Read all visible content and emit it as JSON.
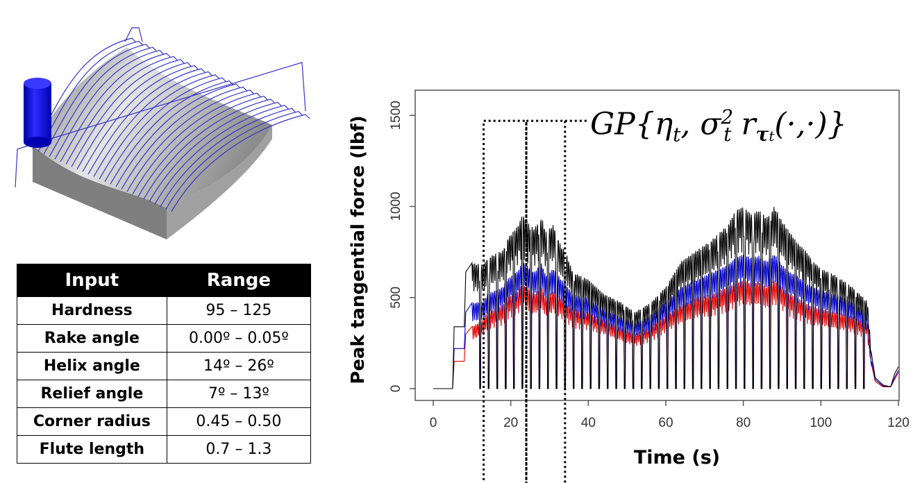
{
  "table": {
    "headers": [
      "Input",
      "Range"
    ],
    "rows": [
      {
        "input": "Hardness",
        "range": "95 – 125"
      },
      {
        "input": "Rake angle",
        "range": "0.00º – 0.05º"
      },
      {
        "input": "Helix angle",
        "range": "14º – 26º"
      },
      {
        "input": "Relief angle",
        "range": "7º – 13º"
      },
      {
        "input": "Corner radius",
        "range": "0.45 – 0.50"
      },
      {
        "input": "Flute length",
        "range": "0.7 – 1.3"
      }
    ]
  },
  "annotation": {
    "gp_prefix": "GP{η",
    "t1": "t",
    "sep": ", σ",
    "sq": "2",
    "t2": "t",
    "r": " r",
    "tau": "τ",
    "t3": "t",
    "suffix": "(·,·)}"
  },
  "chart_data": {
    "type": "line",
    "xlabel": "Time (s)",
    "ylabel": "Peak tangential force (lbf)",
    "xlim": [
      0,
      120
    ],
    "ylim": [
      0,
      1600
    ],
    "xticks": [
      0,
      20,
      40,
      60,
      80,
      100,
      120
    ],
    "yticks": [
      0,
      500,
      1000,
      1500
    ],
    "windows": [
      [
        13,
        24
      ],
      [
        24,
        34
      ]
    ],
    "window_level": 1470,
    "series": [
      {
        "name": "black",
        "color": "#000000",
        "x": [
          0,
          5,
          5.4,
          8,
          8.4,
          10,
          13,
          14,
          18,
          19,
          22,
          23,
          24,
          26,
          28,
          29,
          31,
          33,
          34,
          36,
          40,
          44,
          48,
          52,
          56,
          60,
          64,
          68,
          72,
          76,
          78,
          80,
          82,
          84,
          86,
          88,
          90,
          92,
          94,
          96,
          98,
          100,
          104,
          108,
          112,
          113,
          114,
          116,
          118,
          119,
          120
        ],
        "y": [
          0,
          0,
          340,
          340,
          640,
          690,
          680,
          720,
          760,
          820,
          900,
          960,
          920,
          880,
          940,
          860,
          900,
          780,
          760,
          640,
          600,
          520,
          480,
          420,
          470,
          560,
          700,
          760,
          820,
          900,
          980,
          1000,
          960,
          980,
          940,
          1000,
          920,
          860,
          800,
          760,
          700,
          660,
          620,
          560,
          480,
          200,
          60,
          20,
          10,
          80,
          120
        ]
      },
      {
        "name": "blue",
        "color": "#0000cc",
        "x": [
          0,
          5,
          5.4,
          8,
          8.4,
          10,
          13,
          14,
          18,
          19,
          22,
          23,
          24,
          26,
          28,
          29,
          31,
          33,
          34,
          36,
          40,
          44,
          48,
          52,
          56,
          60,
          64,
          68,
          72,
          76,
          78,
          80,
          82,
          84,
          86,
          88,
          90,
          92,
          94,
          96,
          98,
          100,
          104,
          108,
          112,
          113,
          114,
          116,
          118,
          119,
          120
        ],
        "y": [
          0,
          0,
          220,
          220,
          420,
          470,
          480,
          520,
          560,
          600,
          650,
          700,
          680,
          640,
          690,
          620,
          660,
          600,
          580,
          520,
          500,
          440,
          400,
          360,
          400,
          480,
          560,
          600,
          640,
          680,
          720,
          740,
          720,
          730,
          700,
          740,
          680,
          640,
          620,
          580,
          560,
          540,
          520,
          480,
          420,
          160,
          50,
          15,
          10,
          60,
          100
        ]
      },
      {
        "name": "red",
        "color": "#dd0000",
        "x": [
          0,
          5,
          5.4,
          8,
          8.4,
          10,
          13,
          14,
          18,
          19,
          22,
          23,
          24,
          26,
          28,
          29,
          31,
          33,
          34,
          36,
          40,
          44,
          48,
          52,
          56,
          60,
          64,
          68,
          72,
          76,
          78,
          80,
          82,
          84,
          86,
          88,
          90,
          92,
          94,
          96,
          98,
          100,
          104,
          108,
          112,
          113,
          114,
          116,
          118,
          119,
          120
        ],
        "y": [
          0,
          0,
          150,
          150,
          300,
          340,
          380,
          420,
          460,
          500,
          540,
          580,
          560,
          520,
          560,
          500,
          540,
          500,
          480,
          440,
          420,
          380,
          340,
          300,
          340,
          400,
          460,
          500,
          520,
          560,
          580,
          600,
          580,
          590,
          560,
          600,
          560,
          520,
          500,
          470,
          450,
          440,
          420,
          400,
          360,
          140,
          40,
          10,
          10,
          50,
          90
        ]
      }
    ]
  }
}
